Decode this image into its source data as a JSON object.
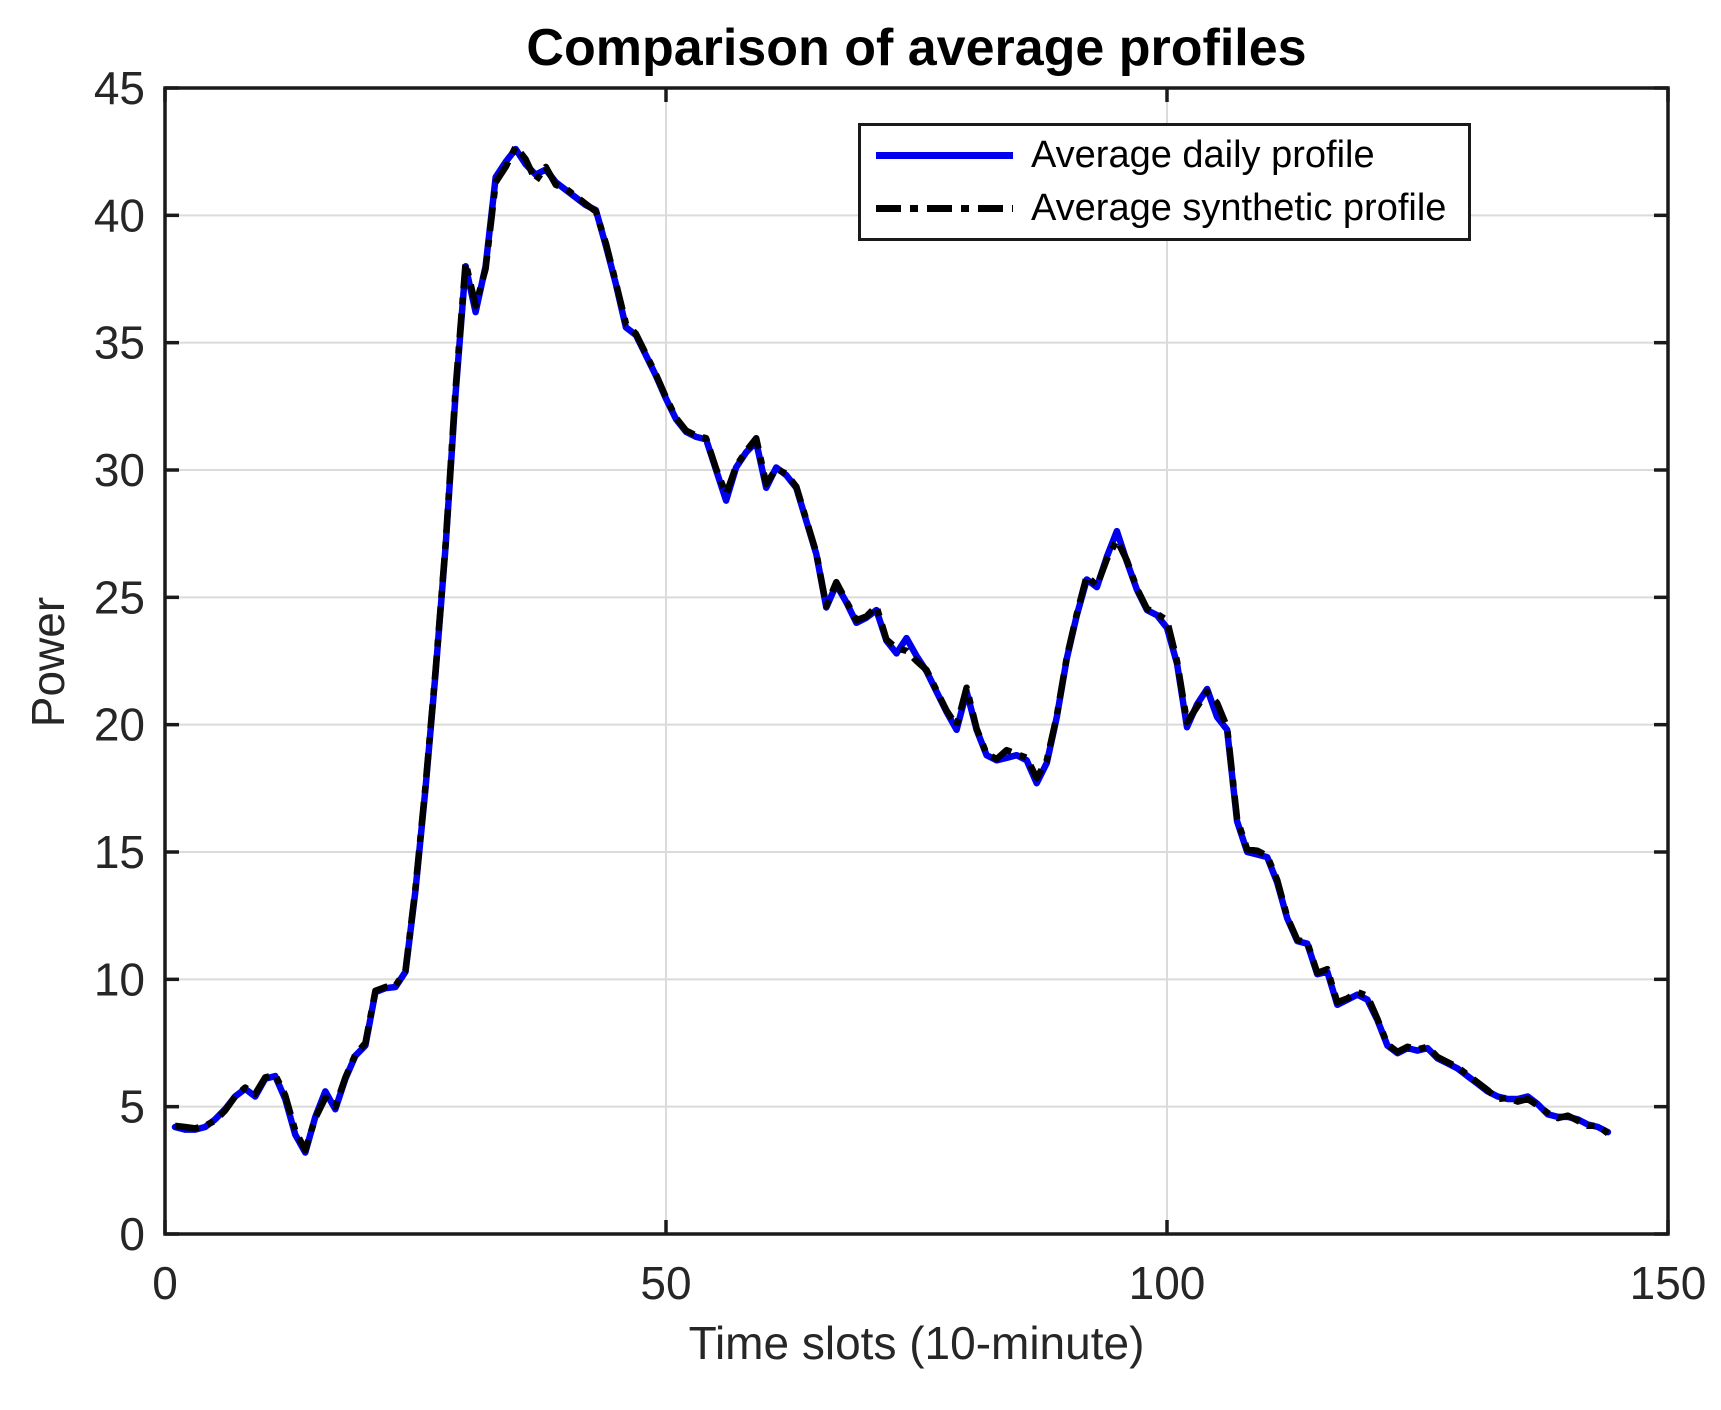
{
  "style": {
    "background": "#ffffff",
    "accent_blue": "#0000EE",
    "line_black": "#000000",
    "grid_color": "#DBDBDB",
    "axis_color": "#1A1A1A",
    "tick_label_color": "#262626",
    "title_color": "#000000"
  },
  "legend": {
    "items": [
      {
        "label": "Average daily profile"
      },
      {
        "label": "Average synthetic profile"
      }
    ]
  },
  "chart_data": {
    "type": "line",
    "title": "Comparison of average profiles",
    "xlabel": "Time slots (10-minute)",
    "ylabel": "Power",
    "xlim": [
      0,
      150
    ],
    "ylim": [
      0,
      45
    ],
    "xticks": [
      0,
      50,
      100,
      150
    ],
    "yticks": [
      0,
      5,
      10,
      15,
      20,
      25,
      30,
      35,
      40,
      45
    ],
    "grid": true,
    "legend_position": "top-right-inside",
    "x_start": 1,
    "x_step": 1,
    "x_count": 144,
    "series": [
      {
        "name": "Average daily profile",
        "color": "#0000EE",
        "style": "solid",
        "width": 6.5,
        "values": [
          4.2,
          4.1,
          4.1,
          4.2,
          4.5,
          4.9,
          5.4,
          5.7,
          5.4,
          6.1,
          6.2,
          5.3,
          3.9,
          3.2,
          4.6,
          5.6,
          4.9,
          6.1,
          7.0,
          7.4,
          9.5,
          9.65,
          9.7,
          10.3,
          13.5,
          17.5,
          22.0,
          27.0,
          33.0,
          38.0,
          36.2,
          38.0,
          41.5,
          42.1,
          42.6,
          42.0,
          41.6,
          41.8,
          41.3,
          41.0,
          40.7,
          40.4,
          40.2,
          38.8,
          37.3,
          35.6,
          35.3,
          34.5,
          33.7,
          32.8,
          32.0,
          31.5,
          31.3,
          31.2,
          30.0,
          28.8,
          30.1,
          30.7,
          31.1,
          29.3,
          30.1,
          29.8,
          29.3,
          28.0,
          26.7,
          24.6,
          25.5,
          24.8,
          24.0,
          24.2,
          24.5,
          23.3,
          22.8,
          23.4,
          22.7,
          22.1,
          21.3,
          20.5,
          19.8,
          21.3,
          19.8,
          18.8,
          18.6,
          18.7,
          18.8,
          18.6,
          17.7,
          18.5,
          20.3,
          22.6,
          24.3,
          25.7,
          25.4,
          26.6,
          27.6,
          26.4,
          25.3,
          24.5,
          24.3,
          23.8,
          22.4,
          19.9,
          20.8,
          21.4,
          20.3,
          19.8,
          16.2,
          15.0,
          14.9,
          14.8,
          13.8,
          12.4,
          11.5,
          11.4,
          10.2,
          10.3,
          9.0,
          9.2,
          9.4,
          9.2,
          8.4,
          7.4,
          7.1,
          7.3,
          7.2,
          7.3,
          6.9,
          6.7,
          6.5,
          6.2,
          5.9,
          5.6,
          5.4,
          5.3,
          5.3,
          5.4,
          5.1,
          4.7,
          4.6,
          4.6,
          4.5,
          4.3,
          4.2,
          4.0
        ]
      },
      {
        "name": "Average synthetic profile",
        "color": "#000000",
        "style": "dash-dot",
        "width": 6.5,
        "values": [
          4.25,
          4.2,
          4.15,
          4.25,
          4.45,
          4.85,
          5.4,
          5.75,
          5.5,
          6.15,
          6.25,
          5.45,
          4.05,
          3.3,
          4.55,
          5.35,
          5.0,
          6.15,
          7.05,
          7.5,
          9.55,
          9.7,
          9.75,
          10.35,
          13.6,
          17.6,
          22.1,
          27.1,
          33.2,
          38.15,
          36.45,
          37.9,
          41.3,
          41.9,
          42.7,
          42.2,
          41.35,
          41.9,
          41.2,
          41.05,
          40.75,
          40.45,
          40.15,
          38.9,
          37.35,
          35.75,
          35.35,
          34.55,
          33.75,
          32.85,
          32.05,
          31.55,
          31.35,
          31.25,
          30.05,
          29.05,
          30.15,
          30.75,
          31.25,
          29.45,
          30.05,
          29.85,
          29.35,
          28.05,
          26.75,
          24.65,
          25.6,
          24.85,
          24.1,
          24.25,
          24.65,
          23.35,
          23.0,
          22.9,
          22.5,
          22.15,
          21.35,
          20.55,
          19.95,
          21.45,
          19.85,
          18.85,
          18.65,
          19.0,
          18.85,
          18.7,
          17.9,
          18.6,
          20.35,
          22.65,
          24.35,
          25.85,
          25.45,
          26.5,
          27.25,
          26.45,
          25.35,
          24.55,
          24.35,
          24.1,
          22.5,
          20.1,
          20.7,
          21.3,
          20.85,
          19.9,
          16.3,
          15.1,
          15.05,
          14.85,
          13.9,
          12.45,
          11.55,
          11.45,
          10.25,
          10.4,
          9.1,
          9.25,
          9.5,
          9.35,
          8.45,
          7.45,
          7.15,
          7.35,
          7.25,
          7.35,
          6.95,
          6.75,
          6.55,
          6.25,
          5.95,
          5.65,
          5.3,
          5.35,
          5.2,
          5.3,
          5.05,
          4.75,
          4.55,
          4.65,
          4.45,
          4.25,
          4.25,
          3.95
        ]
      }
    ]
  }
}
